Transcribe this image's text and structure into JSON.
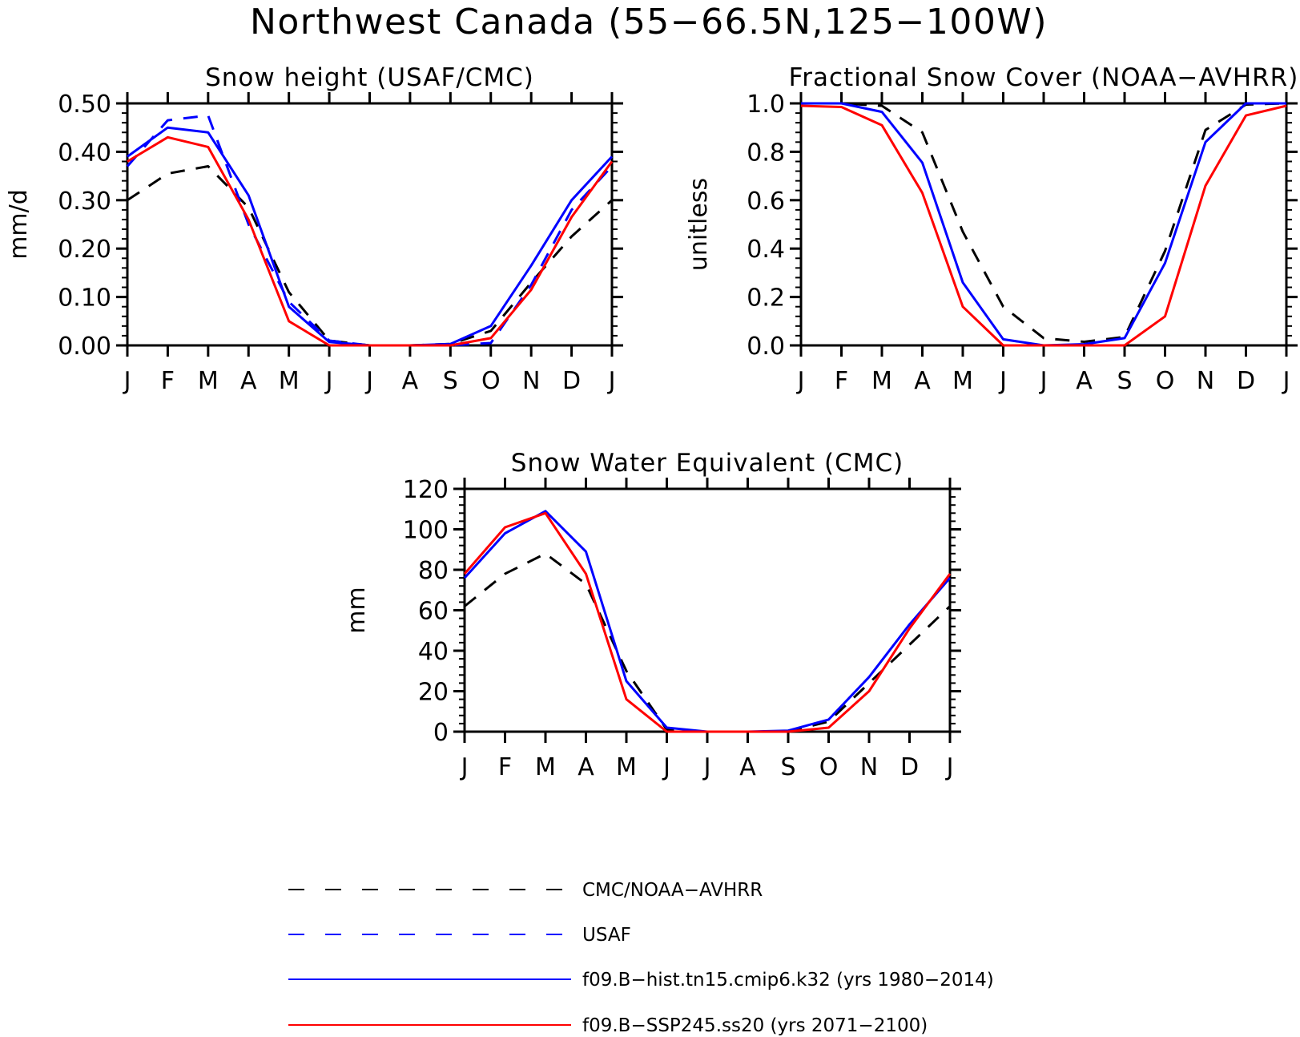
{
  "title": "Northwest Canada (55−66.5N,125−100W)",
  "colors": {
    "obs": "#000000",
    "usaf": "#0000ff",
    "hist": "#0000ff",
    "ssp": "#ff0000"
  },
  "legend": [
    {
      "key": "obs",
      "label": "CMC/NOAA−AVHRR",
      "color": "#000000",
      "dashed": true
    },
    {
      "key": "usaf",
      "label": "USAF",
      "color": "#0000ff",
      "dashed": true
    },
    {
      "key": "hist",
      "label": "f09.B−hist.tn15.cmip6.k32 (yrs 1980−2014)",
      "color": "#0000ff",
      "dashed": false
    },
    {
      "key": "ssp",
      "label": "f09.B−SSP245.ss20 (yrs 2071−2100)",
      "color": "#ff0000",
      "dashed": false
    }
  ],
  "chart_data": [
    {
      "type": "line",
      "title": "Snow height (USAF/CMC)",
      "ylabel": "mm/d",
      "categories": [
        "J",
        "F",
        "M",
        "A",
        "M",
        "J",
        "J",
        "A",
        "S",
        "O",
        "N",
        "D",
        "J"
      ],
      "ylim": [
        0,
        0.5
      ],
      "yticks": [
        0,
        0.1,
        0.2,
        0.3,
        0.4,
        0.5
      ],
      "ytick_labels": [
        "0.00",
        "0.10",
        "0.20",
        "0.30",
        "0.40",
        "0.50"
      ],
      "series": [
        {
          "key": "obs",
          "values": [
            0.3,
            0.355,
            0.37,
            0.285,
            0.11,
            0.01,
            0.0,
            0.0,
            0.003,
            0.03,
            0.13,
            0.225,
            0.3
          ]
        },
        {
          "key": "usaf",
          "values": [
            0.37,
            0.465,
            0.475,
            0.25,
            0.09,
            0.01,
            0.0,
            0.0,
            0.0,
            0.005,
            0.125,
            0.28,
            0.37
          ]
        },
        {
          "key": "hist",
          "values": [
            0.39,
            0.45,
            0.44,
            0.31,
            0.08,
            0.007,
            0.0,
            0.0,
            0.003,
            0.04,
            0.165,
            0.3,
            0.39
          ]
        },
        {
          "key": "ssp",
          "values": [
            0.38,
            0.43,
            0.41,
            0.26,
            0.05,
            0.0,
            0.0,
            0.0,
            0.0,
            0.015,
            0.115,
            0.265,
            0.38
          ]
        }
      ]
    },
    {
      "type": "line",
      "title": "Fractional Snow Cover (NOAA−AVHRR)",
      "ylabel": "unitless",
      "categories": [
        "J",
        "F",
        "M",
        "A",
        "M",
        "J",
        "J",
        "A",
        "S",
        "O",
        "N",
        "D",
        "J"
      ],
      "ylim": [
        0,
        1
      ],
      "yticks": [
        0,
        0.2,
        0.4,
        0.6,
        0.8,
        1.0
      ],
      "ytick_labels": [
        "0.0",
        "0.2",
        "0.4",
        "0.6",
        "0.8",
        "1.0"
      ],
      "series": [
        {
          "key": "obs",
          "values": [
            1.0,
            1.0,
            0.99,
            0.88,
            0.47,
            0.16,
            0.03,
            0.015,
            0.035,
            0.39,
            0.89,
            0.995,
            1.0
          ]
        },
        {
          "key": "hist",
          "values": [
            1.0,
            1.0,
            0.965,
            0.755,
            0.26,
            0.025,
            0.0,
            0.005,
            0.03,
            0.34,
            0.84,
            1.0,
            1.0
          ]
        },
        {
          "key": "ssp",
          "values": [
            0.99,
            0.985,
            0.91,
            0.63,
            0.16,
            0.0,
            0.0,
            0.0,
            0.0,
            0.12,
            0.66,
            0.95,
            0.99
          ]
        }
      ]
    },
    {
      "type": "line",
      "title": "Snow Water Equivalent (CMC)",
      "ylabel": "mm",
      "categories": [
        "J",
        "F",
        "M",
        "A",
        "M",
        "J",
        "J",
        "A",
        "S",
        "O",
        "N",
        "D",
        "J"
      ],
      "ylim": [
        0,
        120
      ],
      "yticks": [
        0,
        20,
        40,
        60,
        80,
        100,
        120
      ],
      "ytick_labels": [
        "0",
        "20",
        "40",
        "60",
        "80",
        "100",
        "120"
      ],
      "series": [
        {
          "key": "obs",
          "values": [
            62,
            78,
            88,
            73,
            30,
            1,
            0,
            0,
            0,
            5,
            24,
            43,
            62
          ]
        },
        {
          "key": "hist",
          "values": [
            76,
            98,
            109,
            89,
            25,
            2,
            0,
            0,
            0.5,
            6,
            27,
            53,
            76
          ]
        },
        {
          "key": "ssp",
          "values": [
            78,
            101,
            108,
            78,
            16,
            0,
            0,
            0,
            0,
            2,
            20,
            51,
            78
          ]
        }
      ]
    }
  ]
}
